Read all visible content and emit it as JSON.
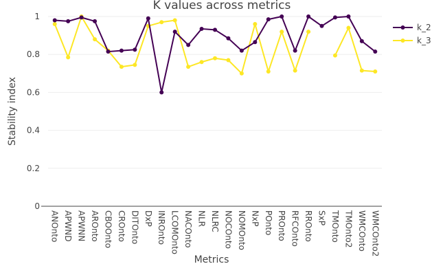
{
  "chart_data": {
    "type": "line",
    "title": "K values across metrics",
    "xlabel": "Metrics",
    "ylabel": "Stability index",
    "ylim": [
      0,
      1
    ],
    "y_ticks": [
      0,
      0.2,
      0.4,
      0.6,
      0.8,
      1
    ],
    "y_tick_labels": [
      "0",
      "0.2",
      "0.4",
      "0.6",
      "0.8",
      "1"
    ],
    "grid": true,
    "legend_position": "top-right",
    "categories": [
      "ANOnto",
      "APWND",
      "APWNN",
      "AROnto",
      "CBOOnto",
      "CROnto",
      "DITOnto",
      "DxP",
      "INROnto",
      "LCOMOnto",
      "NACOnto",
      "NLR",
      "NLRC",
      "NOCOnto",
      "NOMOnto",
      "NxP",
      "POnto",
      "PROnto",
      "RFCOnto",
      "RROnto",
      "SxP",
      "TMOnto",
      "TMOnto2",
      "WMCOnto",
      "WMCOnto2"
    ],
    "series": [
      {
        "name": "k_2",
        "color": "#440154",
        "values": [
          0.98,
          0.975,
          0.995,
          0.975,
          0.815,
          0.82,
          0.825,
          0.99,
          0.6,
          0.92,
          0.85,
          0.935,
          0.93,
          0.885,
          0.82,
          0.865,
          0.985,
          1.0,
          0.82,
          1.0,
          0.95,
          0.995,
          1.0,
          0.87,
          0.815
        ]
      },
      {
        "name": "k_3",
        "color": "#fde725",
        "values": [
          0.96,
          0.785,
          1.0,
          0.88,
          0.82,
          0.735,
          0.745,
          0.95,
          0.97,
          0.98,
          0.735,
          0.76,
          0.78,
          0.77,
          0.7,
          0.96,
          0.71,
          0.92,
          0.715,
          0.92,
          null,
          0.795,
          0.94,
          0.715,
          0.71
        ]
      }
    ]
  }
}
